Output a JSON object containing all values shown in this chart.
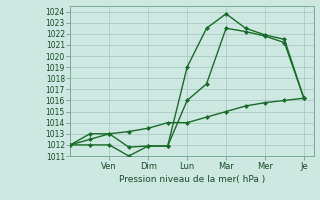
{
  "title": "",
  "xlabel": "Pression niveau de la mer( hPa )",
  "ylabel": "",
  "bg_color": "#cce8e0",
  "grid_color": "#aaccc4",
  "line_color": "#1a6b2a",
  "ylim": [
    1011,
    1024.5
  ],
  "yticks": [
    1011,
    1012,
    1013,
    1014,
    1015,
    1016,
    1017,
    1018,
    1019,
    1020,
    1021,
    1022,
    1023,
    1024
  ],
  "x_day_labels": [
    "Ven",
    "Dim",
    "Lun",
    "Mar",
    "Mer",
    "Je"
  ],
  "x_day_positions": [
    2,
    4,
    6,
    8,
    10,
    12
  ],
  "xlim": [
    0,
    12.5
  ],
  "line1_x": [
    0,
    1,
    2,
    3,
    4,
    5,
    6,
    7,
    8,
    9,
    10,
    11,
    12
  ],
  "line1_y": [
    1012,
    1012,
    1012,
    1011,
    1011.9,
    1011.9,
    1016,
    1017.5,
    1022.5,
    1022.2,
    1021.8,
    1021.2,
    1016.2
  ],
  "line2_x": [
    0,
    1,
    2,
    3,
    4,
    5,
    6,
    7,
    8,
    9,
    10,
    11,
    12
  ],
  "line2_y": [
    1012,
    1013,
    1013,
    1011.8,
    1011.9,
    1011.9,
    1019.0,
    1022.5,
    1023.8,
    1022.5,
    1021.9,
    1021.5,
    1016.2
  ],
  "line3_x": [
    0,
    1,
    2,
    3,
    4,
    5,
    6,
    7,
    8,
    9,
    10,
    11,
    12
  ],
  "line3_y": [
    1012,
    1012.5,
    1013,
    1013.2,
    1013.5,
    1014,
    1014.0,
    1014.5,
    1015.0,
    1015.5,
    1015.8,
    1016.0,
    1016.2
  ],
  "xlabel_fontsize": 6.5,
  "ytick_fontsize": 5.5,
  "xtick_fontsize": 6.0,
  "linewidth": 1.0,
  "markersize": 2.0
}
